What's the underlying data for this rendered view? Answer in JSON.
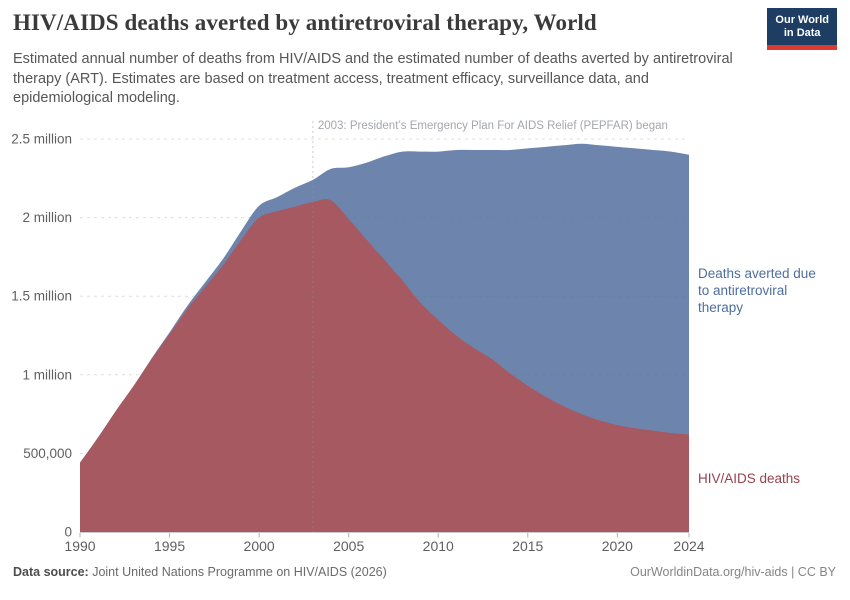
{
  "header": {
    "title": "HIV/AIDS deaths averted by antiretroviral therapy, World",
    "subtitle": "Estimated annual number of deaths from HIV/AIDS and the estimated number of deaths averted by antiretroviral therapy (ART). Estimates are based on treatment access, treatment efficacy, surveillance data, and epidemiological modeling.",
    "logo": {
      "line1": "Our World",
      "line2": "in Data",
      "bg_color": "#1d3d63",
      "stripe_color": "#dc3a31"
    }
  },
  "chart_data": {
    "type": "area",
    "stacked": true,
    "title": "HIV/AIDS deaths averted by antiretroviral therapy, World",
    "x": [
      1990,
      1991,
      1992,
      1993,
      1994,
      1995,
      1996,
      1997,
      1998,
      1999,
      2000,
      2001,
      2002,
      2003,
      2004,
      2005,
      2006,
      2007,
      2008,
      2009,
      2010,
      2011,
      2012,
      2013,
      2014,
      2015,
      2016,
      2017,
      2018,
      2019,
      2020,
      2021,
      2022,
      2023,
      2024
    ],
    "series": [
      {
        "name": "HIV/AIDS deaths",
        "color": "#a65960",
        "label_color": "#97414f",
        "values": [
          440000,
          600000,
          770000,
          930000,
          1100000,
          1260000,
          1420000,
          1560000,
          1700000,
          1860000,
          2000000,
          2040000,
          2070000,
          2100000,
          2110000,
          1990000,
          1860000,
          1730000,
          1600000,
          1460000,
          1350000,
          1250000,
          1170000,
          1100000,
          1010000,
          930000,
          860000,
          800000,
          750000,
          710000,
          680000,
          660000,
          645000,
          630000,
          620000
        ]
      },
      {
        "name": "Deaths averted due to antiretroviral therapy",
        "color": "#6d85ad",
        "label_color": "#4e6d9f",
        "values": [
          0,
          0,
          0,
          0,
          5000,
          10000,
          20000,
          30000,
          40000,
          55000,
          75000,
          90000,
          120000,
          140000,
          200000,
          330000,
          490000,
          660000,
          820000,
          960000,
          1070000,
          1180000,
          1260000,
          1330000,
          1420000,
          1510000,
          1590000,
          1660000,
          1720000,
          1750000,
          1770000,
          1780000,
          1785000,
          1790000,
          1780000
        ]
      }
    ],
    "ylim": [
      0,
      2500000
    ],
    "yticks": [
      {
        "v": 0,
        "label": "0"
      },
      {
        "v": 500000,
        "label": "500,000"
      },
      {
        "v": 1000000,
        "label": "1 million"
      },
      {
        "v": 1500000,
        "label": "1.5 million"
      },
      {
        "v": 2000000,
        "label": "2 million"
      },
      {
        "v": 2500000,
        "label": "2.5 million"
      }
    ],
    "xticks": [
      {
        "v": 1990,
        "label": "1990"
      },
      {
        "v": 1995,
        "label": "1995"
      },
      {
        "v": 2000,
        "label": "2000"
      },
      {
        "v": 2005,
        "label": "2005"
      },
      {
        "v": 2010,
        "label": "2010"
      },
      {
        "v": 2015,
        "label": "2015"
      },
      {
        "v": 2020,
        "label": "2020"
      },
      {
        "v": 2024,
        "label": "2024"
      }
    ],
    "annotation": {
      "year": 2003,
      "text": "2003: President’s Emergency Plan For AIDS Relief (PEPFAR) began"
    },
    "grid": "dashed horizontal gridlines drawn over areas",
    "legend": "direct area labels at right edge"
  },
  "footer": {
    "source_label": "Data source:",
    "source_text": " Joint United Nations Programme on HIV/AIDS (2026)",
    "license": "OurWorldinData.org/hiv-aids | CC BY"
  }
}
